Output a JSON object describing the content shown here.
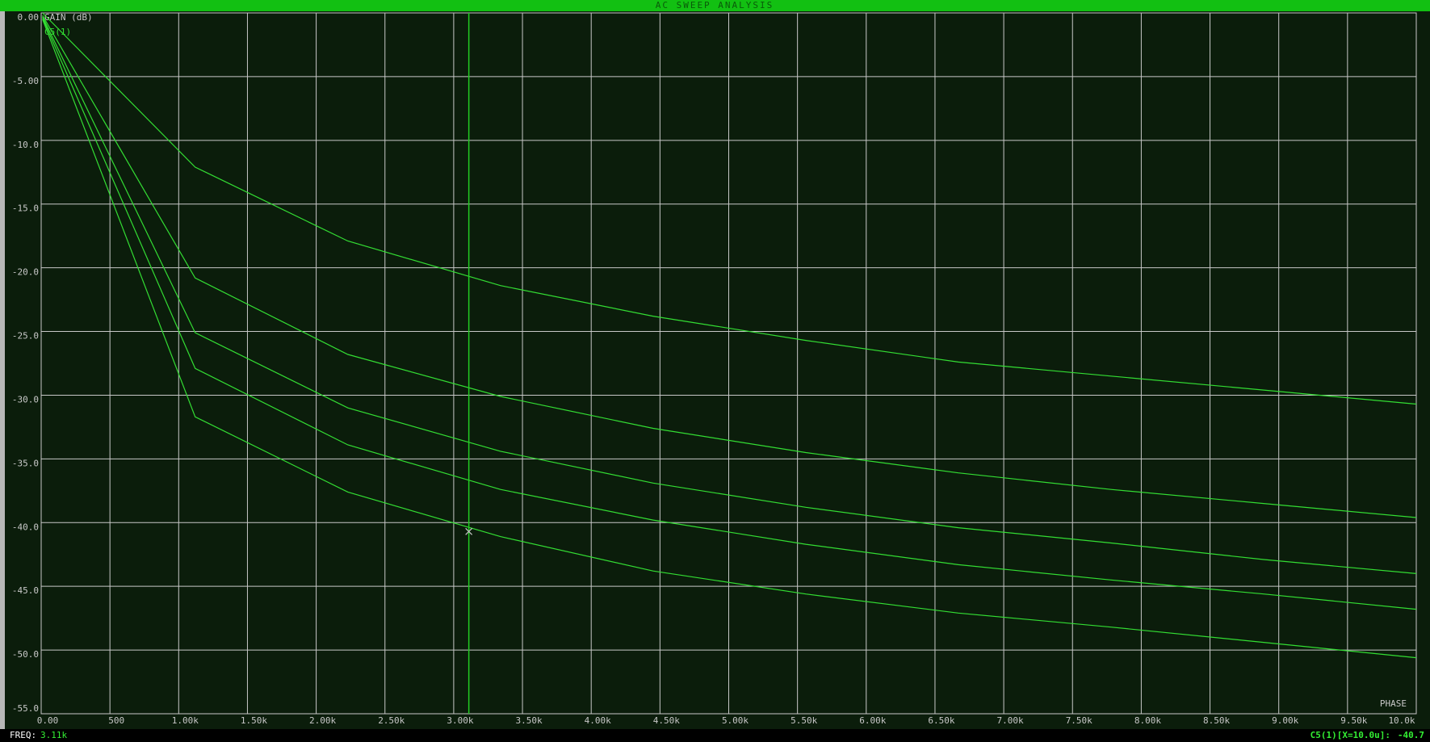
{
  "window": {
    "title": "AC SWEEP ANALYSIS"
  },
  "status": {
    "freq_label": "FREQ:",
    "trace_readout": "C5(1)[X=10.0u]:"
  },
  "chart_data": {
    "type": "line",
    "y_label": "GAIN (dB)",
    "x_label": "PHASE",
    "trace_label": "C5(1)",
    "grid": true,
    "grid_color": "#c8c8c8",
    "background": "#0b1d0b",
    "xlim": [
      0,
      10000
    ],
    "ylim": [
      -55,
      0
    ],
    "xticks": [
      {
        "value": 0,
        "label": "0.00"
      },
      500,
      {
        "value": 1000,
        "label": "1.00k"
      },
      {
        "value": 1500,
        "label": "1.50k"
      },
      {
        "value": 2000,
        "label": "2.00k"
      },
      {
        "value": 2500,
        "label": "2.50k"
      },
      {
        "value": 3000,
        "label": "3.00k"
      },
      {
        "value": 3500,
        "label": "3.50k"
      },
      {
        "value": 4000,
        "label": "4.00k"
      },
      {
        "value": 4500,
        "label": "4.50k"
      },
      {
        "value": 5000,
        "label": "5.00k"
      },
      {
        "value": 5500,
        "label": "5.50k"
      },
      {
        "value": 6000,
        "label": "6.00k"
      },
      {
        "value": 6500,
        "label": "6.50k"
      },
      {
        "value": 7000,
        "label": "7.00k"
      },
      {
        "value": 7500,
        "label": "7.50k"
      },
      {
        "value": 8000,
        "label": "8.00k"
      },
      {
        "value": 8500,
        "label": "8.50k"
      },
      {
        "value": 9000,
        "label": "9.00k"
      },
      {
        "value": 9500,
        "label": "9.50k"
      },
      {
        "value": 10000,
        "label": "10.0k"
      }
    ],
    "yticks": [
      {
        "value": 0,
        "label": "0.00"
      },
      {
        "value": -5,
        "label": "-5.00"
      },
      {
        "value": -10,
        "label": "-10.0"
      },
      {
        "value": -15,
        "label": "-15.0"
      },
      {
        "value": -20,
        "label": "-20.0"
      },
      {
        "value": -25,
        "label": "-25.0"
      },
      {
        "value": -30,
        "label": "-30.0"
      },
      {
        "value": -35,
        "label": "-35.0"
      },
      {
        "value": -40,
        "label": "-40.0"
      },
      {
        "value": -45,
        "label": "-45.0"
      },
      {
        "value": -50,
        "label": "-50.0"
      },
      {
        "value": -55,
        "label": "-55.0"
      }
    ],
    "x": [
      10,
      1120,
      2230,
      3340,
      4450,
      5560,
      6670,
      7780,
      8890,
      10000
    ],
    "series": [
      {
        "color": "#33dd33",
        "values": [
          0,
          -12.1,
          -17.9,
          -21.4,
          -23.8,
          -25.7,
          -27.4,
          -28.5,
          -29.6,
          -30.7
        ]
      },
      {
        "color": "#33dd33",
        "values": [
          -0.2,
          -20.8,
          -26.8,
          -30.1,
          -32.6,
          -34.5,
          -36.1,
          -37.4,
          -38.5,
          -39.6
        ]
      },
      {
        "color": "#33dd33",
        "values": [
          -0.3,
          -25.1,
          -31.0,
          -34.4,
          -36.9,
          -38.8,
          -40.4,
          -41.6,
          -42.9,
          -44.0
        ]
      },
      {
        "color": "#33dd33",
        "values": [
          -0.4,
          -27.9,
          -33.9,
          -37.4,
          -39.8,
          -41.7,
          -43.3,
          -44.5,
          -45.6,
          -46.8
        ]
      },
      {
        "color": "#33dd33",
        "values": [
          -0.5,
          -31.7,
          -37.6,
          -41.1,
          -43.8,
          -45.6,
          -47.1,
          -48.2,
          -49.4,
          -50.6
        ]
      }
    ],
    "cursor": {
      "x": 3110,
      "x_label": "3.11k",
      "y": -40.7,
      "color": "#22cc22"
    }
  }
}
